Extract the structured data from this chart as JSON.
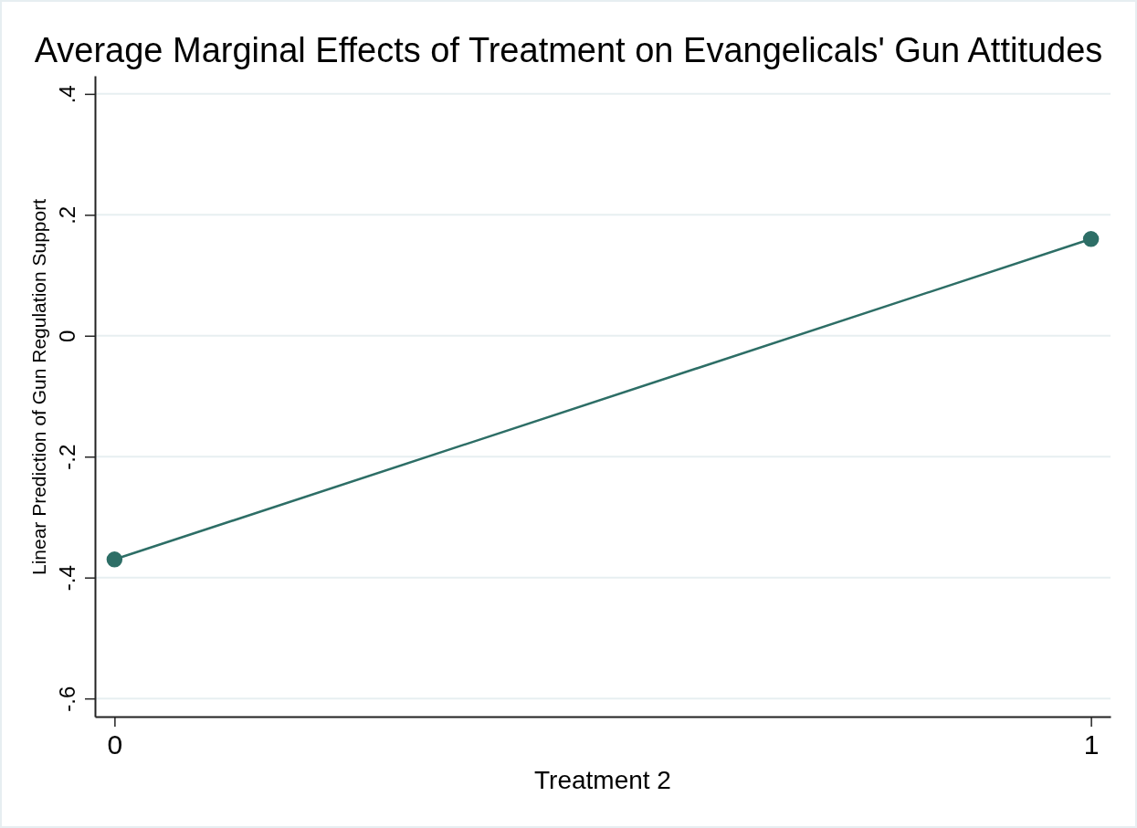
{
  "chart_data": {
    "type": "line",
    "title": "Average Marginal Effects of Treatment on Evangelicals' Gun Attitudes",
    "xlabel": "Treatment 2",
    "ylabel": "Linear Prediction of Gun Regulation Support",
    "x": [
      0,
      1
    ],
    "xlim": [
      -0.02,
      1.02
    ],
    "xticks": [
      0,
      1
    ],
    "ylim": [
      -0.63,
      0.43
    ],
    "yticks": [
      {
        "value": 0.4,
        "label": ".4"
      },
      {
        "value": 0.2,
        "label": ".2"
      },
      0,
      {
        "value": -0.2,
        "label": "-.2"
      },
      {
        "value": -0.4,
        "label": "-.4"
      },
      {
        "value": -0.6,
        "label": "-.6"
      }
    ],
    "grid": "y",
    "marker": "circle",
    "line_style": "solid",
    "series": [
      {
        "color": "#2d6e66",
        "values": [
          -0.37,
          0.16
        ]
      }
    ]
  }
}
